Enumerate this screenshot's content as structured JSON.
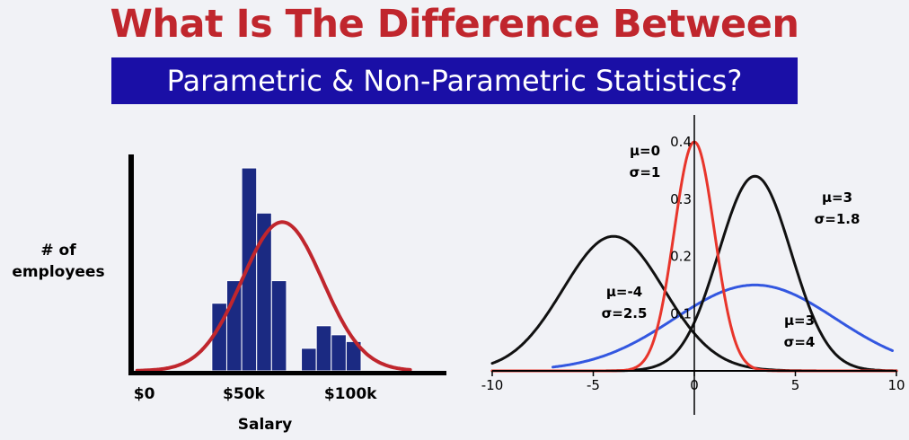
{
  "header": {
    "title": "What Is The Difference Between",
    "subtitle": "Parametric & Non-Parametric Statistics?"
  },
  "colors": {
    "title": "#c0262d",
    "banner": "#1a0fa6",
    "bar": "#1b2a82",
    "hist_curve": "#c0262d",
    "axis": "#000000",
    "red_curve": "#e8352b",
    "blue_curve": "#3357e0",
    "black_curve": "#111111"
  },
  "chart_data": [
    {
      "type": "bar",
      "ylabel": "# of\nemployees",
      "xlabel": "Salary",
      "x_tick_labels": [
        "$0",
        "$50k",
        "$100k"
      ],
      "bars": [
        {
          "x": 35,
          "value": 3
        },
        {
          "x": 42,
          "value": 4
        },
        {
          "x": 49,
          "value": 9
        },
        {
          "x": 56,
          "value": 7
        },
        {
          "x": 63,
          "value": 4
        },
        {
          "x": 77,
          "value": 1
        },
        {
          "x": 84,
          "value": 2
        },
        {
          "x": 91,
          "value": 1.6
        },
        {
          "x": 98,
          "value": 1.3
        }
      ],
      "bar_width": 7,
      "xlim": [
        -2,
        145
      ],
      "ylim": [
        0,
        9.6
      ],
      "curve": {
        "type": "normal",
        "mu": 68,
        "sigma": 19,
        "peak": 6.6
      }
    },
    {
      "type": "line",
      "xlim": [
        -10,
        10
      ],
      "ylim": [
        0,
        0.4
      ],
      "x_ticks": [
        -10,
        -5,
        0,
        5,
        10
      ],
      "y_ticks": [
        0.1,
        0.2,
        0.3,
        0.4
      ],
      "y_tick_labels": [
        "0.1",
        "0.2",
        "0.3",
        "0.4"
      ],
      "series": [
        {
          "mu": 0,
          "sigma": 1,
          "label_mu": "μ=0",
          "label_sigma": "σ=1",
          "color": "red",
          "peak": 0.4,
          "range": [
            -10,
            10
          ]
        },
        {
          "mu": -4,
          "sigma": 2.5,
          "label_mu": "μ=-4",
          "label_sigma": "σ=2.5",
          "color": "black",
          "peak": 0.235,
          "range": [
            -10,
            10
          ]
        },
        {
          "mu": 3,
          "sigma": 1.8,
          "label_mu": "μ=3",
          "label_sigma": "σ=1.8",
          "color": "black",
          "peak": 0.34,
          "range": [
            -10,
            10
          ]
        },
        {
          "mu": 3,
          "sigma": 4,
          "label_mu": "μ=3",
          "label_sigma": "σ=4",
          "color": "blue",
          "peak": 0.15,
          "range": [
            -7,
            9.8
          ]
        }
      ]
    }
  ]
}
